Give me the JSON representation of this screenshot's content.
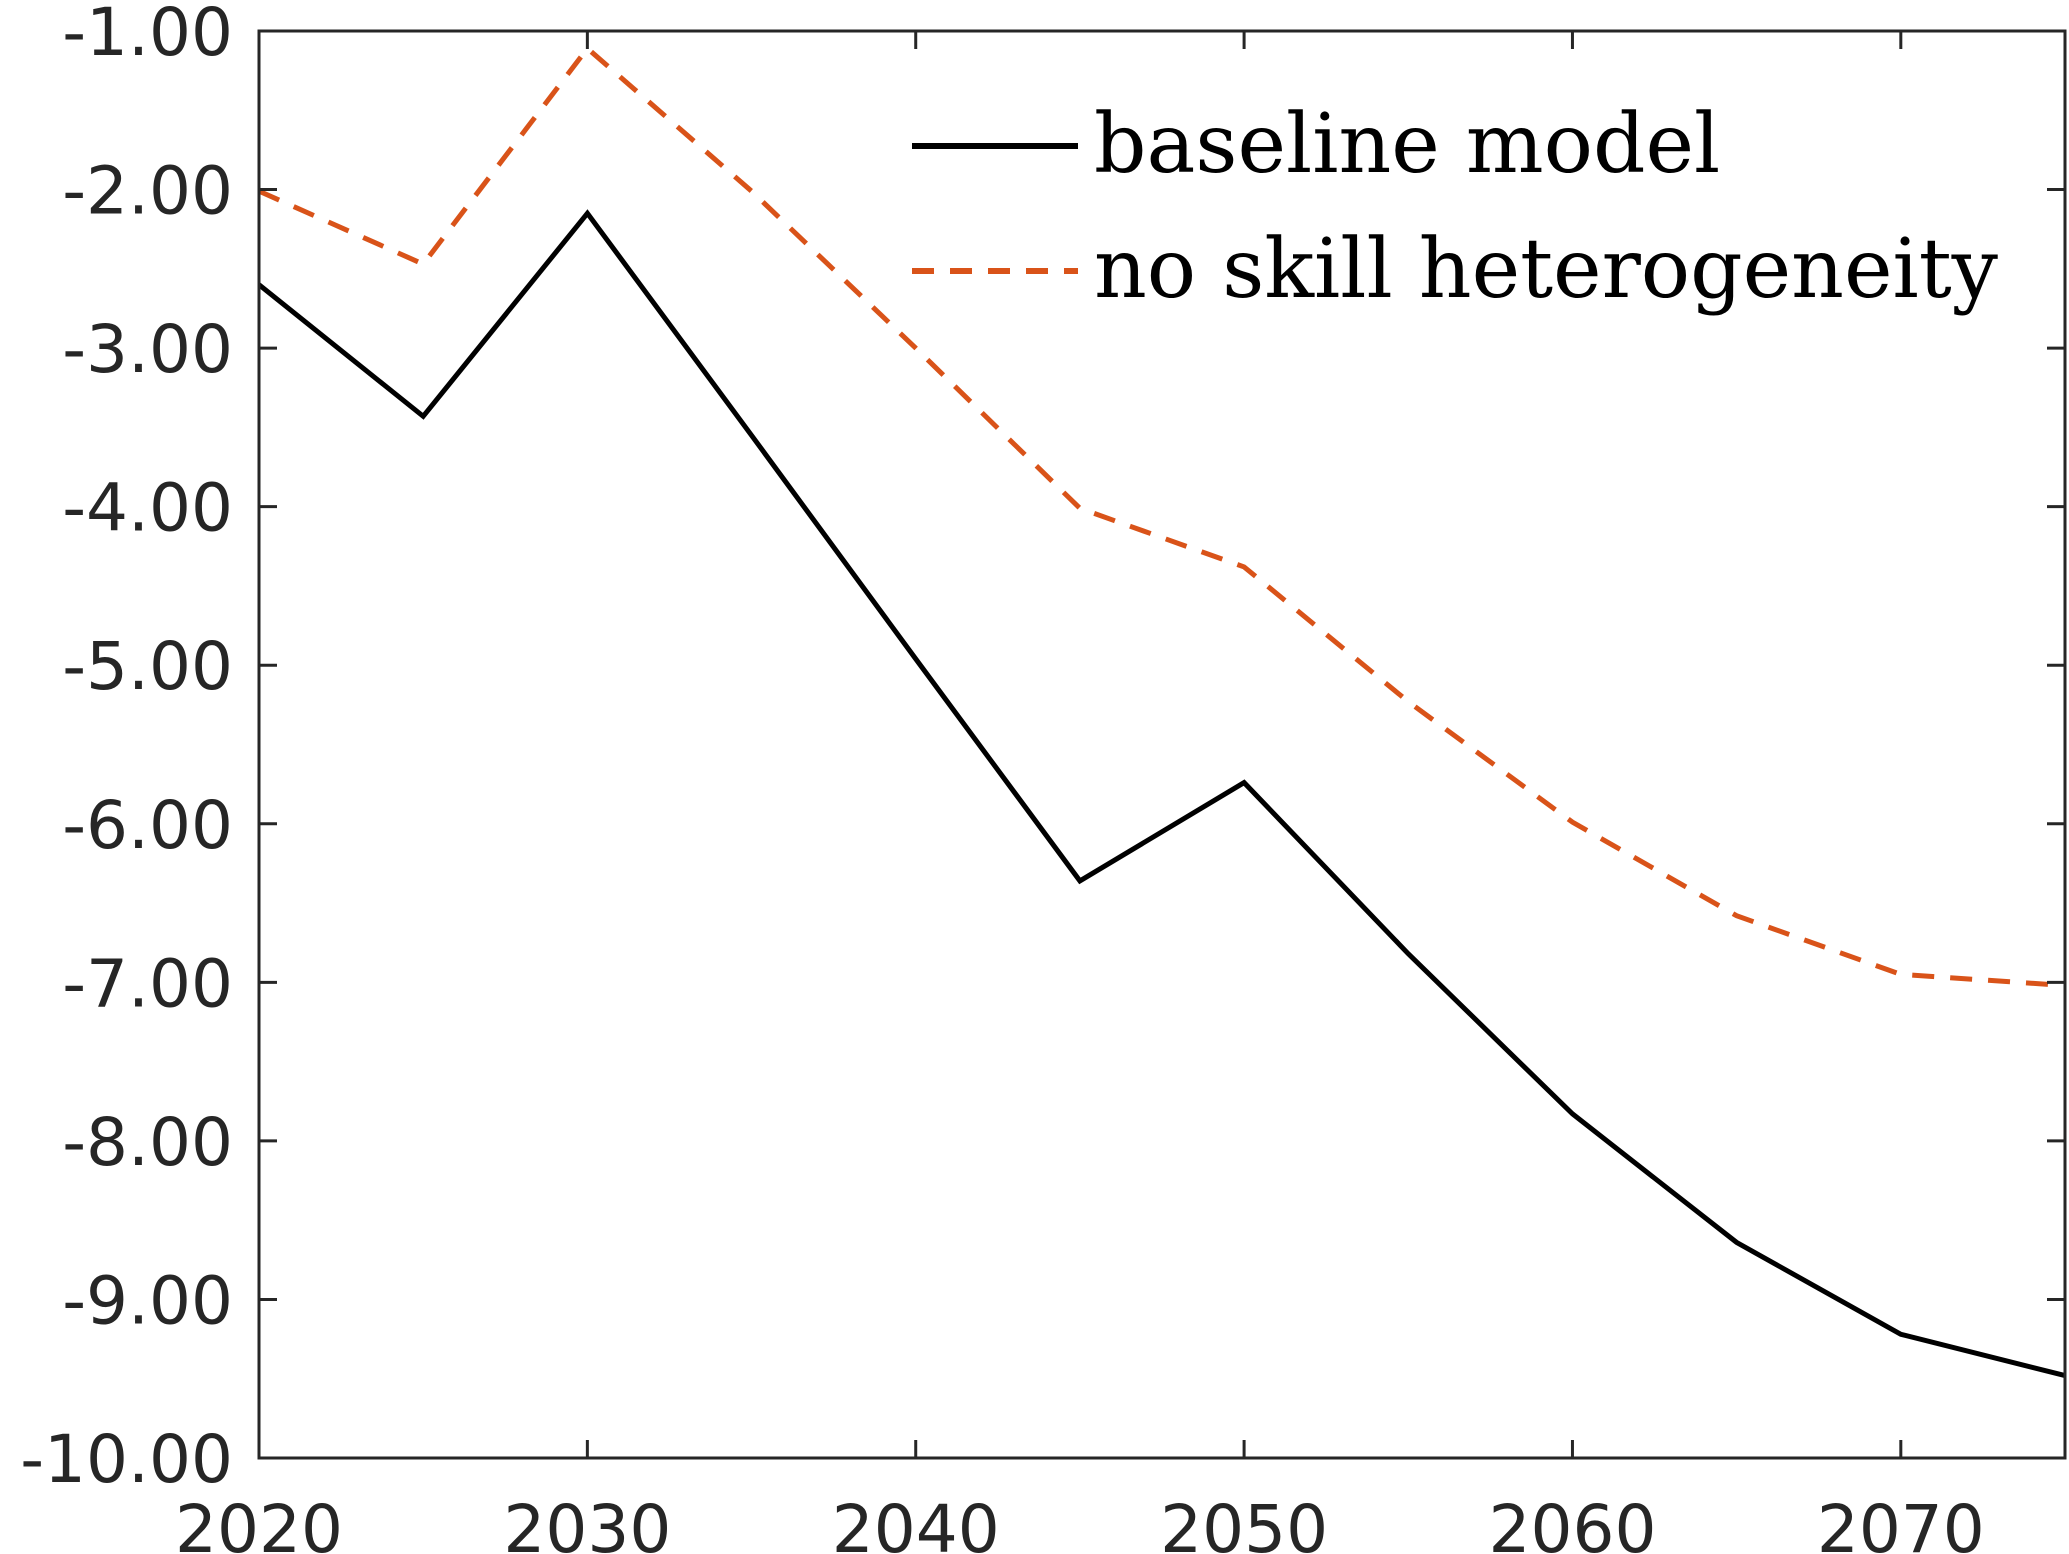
{
  "chart_data": {
    "type": "line",
    "title": "",
    "xlabel": "",
    "ylabel": "",
    "xlim": [
      2020,
      2075
    ],
    "ylim": [
      -10,
      -1
    ],
    "xticks": [
      2020,
      2030,
      2040,
      2050,
      2060,
      2070
    ],
    "xtick_labels": [
      "2020",
      "2030",
      "2040",
      "2050",
      "2060",
      "2070"
    ],
    "yticks": [
      -1,
      -2,
      -3,
      -4,
      -5,
      -6,
      -7,
      -8,
      -9,
      -10
    ],
    "ytick_labels": [
      "-1.00",
      "-2.00",
      "-3.00",
      "-4.00",
      "-5.00",
      "-6.00",
      "-7.00",
      "-8.00",
      "-9.00",
      "-10.00"
    ],
    "grid": false,
    "legend_position": "top-right",
    "x": [
      2020,
      2025,
      2030,
      2035,
      2040,
      2045,
      2050,
      2055,
      2060,
      2065,
      2070,
      2075
    ],
    "series": [
      {
        "name": "baseline model",
        "color": "#000000",
        "style": "solid",
        "values": [
          -2.6,
          -3.43,
          -2.15,
          -3.55,
          -4.96,
          -6.36,
          -5.74,
          -6.82,
          -7.83,
          -8.64,
          -9.22,
          -9.48
        ]
      },
      {
        "name": "no skill heterogeneity",
        "color": "#D95319",
        "style": "dashed",
        "values": [
          -2.01,
          -2.47,
          -1.11,
          -2.01,
          -3.0,
          -4.01,
          -4.38,
          -5.23,
          -5.99,
          -6.58,
          -6.95,
          -7.02
        ]
      }
    ]
  }
}
